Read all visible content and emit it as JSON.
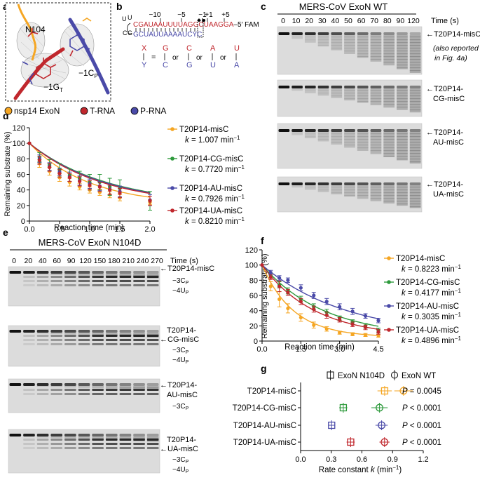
{
  "panel_labels": {
    "a": "a",
    "b": "b",
    "c": "c",
    "d": "d",
    "e": "e",
    "f": "f",
    "g": "g"
  },
  "panel_a": {
    "residue_label": "N104",
    "g_main": "−1G",
    "g_sub": "T",
    "c_main": "−1C",
    "c_sub": "P",
    "legend": [
      {
        "label": "nsp14 ExoN",
        "color": "#f5a623"
      },
      {
        "label": "T-RNA",
        "color": "#c0272d"
      },
      {
        "label": "P-RNA",
        "color": "#4a4aa8"
      }
    ]
  },
  "panel_b": {
    "positions": [
      "−10",
      "−5",
      "−1",
      "+1",
      "+5"
    ],
    "loop_top": "U",
    "loop_mid": "U",
    "loop_bottom": "C",
    "hairpin_left": "G",
    "top_seq": "CGAUAAUUUUAGG",
    "top_box": "C",
    "top_tail": "UAAGGA",
    "top_suffix": "–5′ FAM",
    "bottom_seq": "GCUAUUAAAAUC",
    "bottom_box": "Y",
    "bottom_tail": "C",
    "x_letter": "X",
    "y_letter": "Y",
    "eq": "=",
    "or": "or",
    "pairs": [
      {
        "top": "G",
        "bottom": "C"
      },
      {
        "top": "C",
        "bottom": "G"
      },
      {
        "top": "A",
        "bottom": "U"
      },
      {
        "top": "U",
        "bottom": "A"
      }
    ]
  },
  "panel_c": {
    "title": "MERS-CoV ExoN WT",
    "time_unit": "Time (s)",
    "times": [
      "0",
      "10",
      "20",
      "30",
      "40",
      "50",
      "60",
      "70",
      "80",
      "90",
      "120"
    ],
    "gels": [
      {
        "label_1": "←T20P14-misC",
        "label_2": "",
        "note_1": "(also reported",
        "note_2": "in Fig. 4a)"
      },
      {
        "label_1": "←T20P14-",
        "label_2": "CG-misC"
      },
      {
        "label_1": "←T20P14-",
        "label_2": "AU-misC"
      },
      {
        "label_1": "←T20P14-",
        "label_2": "UA-misC"
      }
    ]
  },
  "panel_e": {
    "title": "MERS-CoV ExoN N104D",
    "time_unit": "Time (s)",
    "times": [
      "0",
      "20",
      "40",
      "60",
      "90",
      "120",
      "150",
      "180",
      "210",
      "240",
      "270"
    ],
    "gels": [
      {
        "label_1": "←T20P14-misC",
        "label_2": "",
        "bands": [
          {
            "main": "−3C",
            "sub": "P"
          },
          {
            "main": "−4U",
            "sub": "P"
          }
        ]
      },
      {
        "label_1": "T20P14-",
        "label_2": "←CG-misC",
        "bands": [
          {
            "main": "−3C",
            "sub": "P"
          },
          {
            "main": "−4U",
            "sub": "P"
          }
        ]
      },
      {
        "label_1": "←T20P14-",
        "label_2": "AU-misC",
        "bands": [
          {
            "main": "−3C",
            "sub": "P"
          }
        ]
      },
      {
        "label_1": "T20P14-",
        "label_2": "←UA-misC",
        "bands": [
          {
            "main": "−3C",
            "sub": "P"
          },
          {
            "main": "−4U",
            "sub": "P"
          }
        ]
      }
    ]
  },
  "legend_d": [
    {
      "name": "T20P14-misC",
      "k_pre": "k",
      "k_val": " = 1.007 min",
      "k_exp": "−1",
      "color": "#f5a623"
    },
    {
      "name": "T20P14-CG-misC",
      "k_pre": "k",
      "k_val": " = 0.7720 min",
      "k_exp": "−1",
      "color": "#2e9a3c"
    },
    {
      "name": "T20P14-AU-misC",
      "k_pre": "k",
      "k_val": " = 0.7926 min",
      "k_exp": "−1",
      "color": "#4a4aa8"
    },
    {
      "name": "T20P14-UA-misC",
      "k_pre": "k",
      "k_val": " = 0.8210 min",
      "k_exp": "−1",
      "color": "#c0272d"
    }
  ],
  "legend_f": [
    {
      "name": "T20P14-misC",
      "k_pre": "k",
      "k_val": " = 0.8223 min",
      "k_exp": "−1",
      "color": "#f5a623"
    },
    {
      "name": "T20P14-CG-misC",
      "k_pre": "k",
      "k_val": " = 0.4177 min",
      "k_exp": "−1",
      "color": "#2e9a3c"
    },
    {
      "name": "T20P14-AU-misC",
      "k_pre": "k",
      "k_val": " = 0.3035 min",
      "k_exp": "−1",
      "color": "#4a4aa8"
    },
    {
      "name": "T20P14-UA-misC",
      "k_pre": "k",
      "k_val": " = 0.4896 min",
      "k_exp": "−1",
      "color": "#c0272d"
    }
  ],
  "chart_data": [
    {
      "id": "d",
      "type": "line",
      "title": "",
      "xlabel": "Reaction time (min)",
      "ylabel": "Remaining substrate (%)",
      "xlim": [
        0,
        2.0
      ],
      "ylim": [
        0,
        120
      ],
      "xticks": [
        "0.0",
        "0.5",
        "1.0",
        "1.5",
        "2.0"
      ],
      "xtick_values": [
        0,
        0.5,
        1.0,
        1.5,
        2.0
      ],
      "yticks": [
        "0",
        "20",
        "40",
        "60",
        "80",
        "100",
        "120"
      ],
      "ytick_values": [
        0,
        20,
        40,
        60,
        80,
        100,
        120
      ],
      "x": [
        0.167,
        0.333,
        0.5,
        0.667,
        0.833,
        1.0,
        1.167,
        1.333,
        1.5,
        2.0
      ],
      "series": [
        {
          "name": "T20P14-misC",
          "color": "#f5a623",
          "k": 1.007,
          "a": 0.8,
          "values": [
            74,
            64,
            56,
            50,
            44,
            40,
            37,
            34,
            30,
            24
          ],
          "err": [
            5,
            5,
            5,
            5,
            4,
            4,
            4,
            4,
            4,
            3
          ]
        },
        {
          "name": "T20P14-CG-misC",
          "color": "#2e9a3c",
          "k": 0.772,
          "a": 0.8,
          "values": [
            82,
            72,
            66,
            59,
            55,
            50,
            50,
            44,
            42,
            26
          ],
          "err": [
            6,
            7,
            8,
            8,
            9,
            10,
            10,
            11,
            11,
            12
          ]
        },
        {
          "name": "T20P14-AU-misC",
          "color": "#4a4aa8",
          "k": 0.7926,
          "a": 0.8,
          "values": [
            80,
            70,
            63,
            57,
            52,
            48,
            45,
            41,
            38,
            27
          ],
          "err": [
            5,
            5,
            5,
            6,
            6,
            6,
            6,
            7,
            7,
            7
          ]
        },
        {
          "name": "T20P14-UA-misC",
          "color": "#c0272d",
          "k": 0.821,
          "a": 0.8,
          "values": [
            78,
            69,
            61,
            56,
            51,
            46,
            44,
            40,
            36,
            26
          ],
          "err": [
            5,
            5,
            5,
            5,
            6,
            6,
            6,
            6,
            6,
            6
          ]
        }
      ]
    },
    {
      "id": "f",
      "type": "line",
      "title": "",
      "xlabel": "Reaction time (min)",
      "ylabel": "Remaining substrate (%)",
      "xlim": [
        0,
        4.5
      ],
      "ylim": [
        0,
        120
      ],
      "xticks": [
        "0.0",
        "1.5",
        "3.0",
        "4.5"
      ],
      "xtick_values": [
        0,
        1.5,
        3.0,
        4.5
      ],
      "yticks": [
        "0",
        "20",
        "40",
        "60",
        "80",
        "100",
        "120"
      ],
      "ytick_values": [
        0,
        20,
        40,
        60,
        80,
        100,
        120
      ],
      "x": [
        0.333,
        0.667,
        1.0,
        1.5,
        2.0,
        2.5,
        3.0,
        3.5,
        4.0,
        4.5
      ],
      "series": [
        {
          "name": "T20P14-misC",
          "color": "#f5a623",
          "k": 0.8223,
          "a": 0.95,
          "values": [
            72,
            55,
            43,
            31,
            21,
            16,
            11,
            9,
            8,
            7
          ],
          "err": [
            6,
            10,
            6,
            5,
            4,
            3,
            2,
            2,
            2,
            2
          ]
        },
        {
          "name": "T20P14-CG-misC",
          "color": "#2e9a3c",
          "k": 0.4177,
          "a": 0.95,
          "values": [
            86,
            74,
            66,
            55,
            45,
            38,
            30,
            25,
            20,
            14
          ],
          "err": [
            3,
            4,
            4,
            4,
            4,
            4,
            3,
            3,
            3,
            3
          ]
        },
        {
          "name": "T20P14-AU-misC",
          "color": "#4a4aa8",
          "k": 0.3035,
          "a": 0.95,
          "values": [
            90,
            83,
            80,
            70,
            60,
            52,
            45,
            39,
            33,
            27
          ],
          "err": [
            3,
            3,
            3,
            4,
            4,
            4,
            4,
            4,
            3,
            3
          ]
        },
        {
          "name": "T20P14-UA-misC",
          "color": "#c0272d",
          "k": 0.4896,
          "a": 0.95,
          "values": [
            84,
            72,
            64,
            52,
            42,
            34,
            28,
            22,
            18,
            12
          ],
          "err": [
            3,
            7,
            4,
            4,
            4,
            4,
            3,
            3,
            3,
            3
          ]
        }
      ]
    },
    {
      "id": "g",
      "type": "scatter",
      "title": "",
      "xlabel_pre": "Rate constant ",
      "xlabel_k": "k",
      "xlabel_post": " (min",
      "xlabel_exp": "−1",
      "xlabel_end": ")",
      "xlim": [
        0,
        1.2
      ],
      "xticks": [
        "0.0",
        "0.3",
        "0.6",
        "0.9",
        "1.2"
      ],
      "xtick_values": [
        0,
        0.3,
        0.6,
        0.9,
        1.2
      ],
      "legend": [
        {
          "marker": "square",
          "label": "ExoN N104D"
        },
        {
          "marker": "circle",
          "label": "ExoN WT"
        }
      ],
      "categories": [
        "T20P14-misC",
        "T20P14-CG-misC",
        "T20P14-AU-misC",
        "T20P14-UA-misC"
      ],
      "colors": [
        "#f5a623",
        "#2e9a3c",
        "#4a4aa8",
        "#c0272d"
      ],
      "series": [
        {
          "name": "ExoN N104D",
          "marker": "square",
          "values": [
            0.8223,
            0.4177,
            0.3035,
            0.4896
          ],
          "err": [
            0.07,
            0.04,
            0.03,
            0.04
          ]
        },
        {
          "name": "ExoN WT",
          "marker": "circle",
          "values": [
            1.007,
            0.772,
            0.7926,
            0.821
          ],
          "err": [
            0.09,
            0.08,
            0.06,
            0.05
          ]
        }
      ],
      "pvalues": [
        {
          "p": "P",
          "rest": " = 0.0045"
        },
        {
          "p": "P",
          "rest": " < 0.0001"
        },
        {
          "p": "P",
          "rest": " < 0.0001"
        },
        {
          "p": "P",
          "rest": " < 0.0001"
        }
      ]
    }
  ]
}
